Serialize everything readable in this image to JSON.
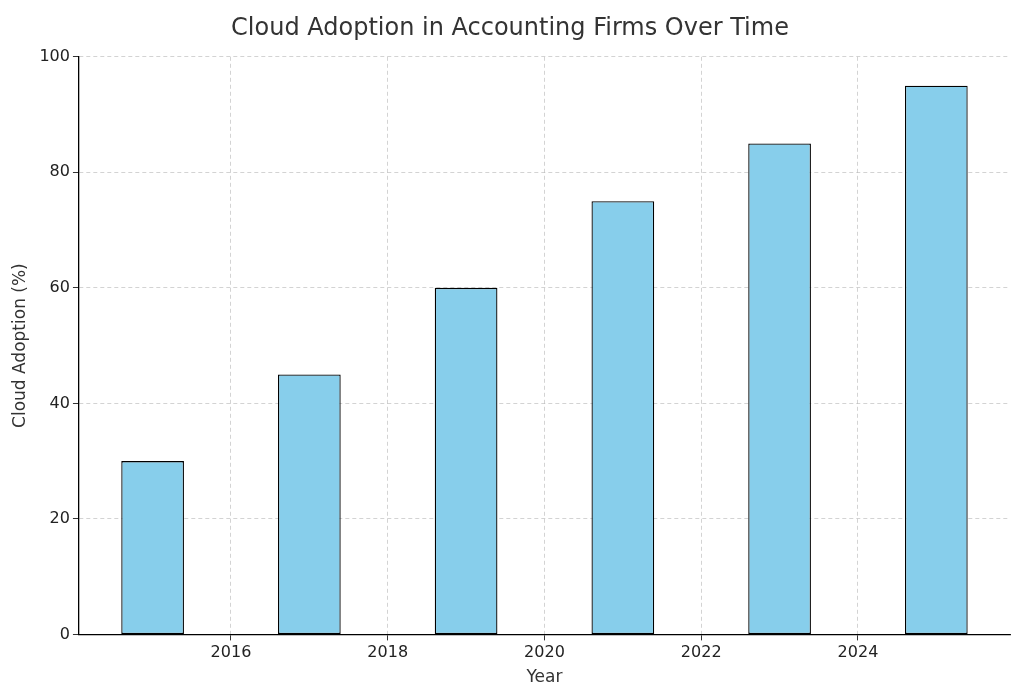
{
  "chart_data": {
    "type": "bar",
    "title": "Cloud Adoption in Accounting Firms Over Time",
    "x_label": "Year",
    "y_label": "Cloud Adoption (%)",
    "x": [
      2015,
      2017,
      2019,
      2021,
      2023,
      2025
    ],
    "values": [
      30,
      45,
      60,
      75,
      85,
      95
    ],
    "color": "#87ceeb",
    "xlim": [
      2014.06,
      2025.94
    ],
    "xticks": [
      2016,
      2018,
      2020,
      2022,
      2024
    ],
    "ylim": [
      0,
      100
    ],
    "yticks": [
      0,
      20,
      40,
      60,
      80,
      100
    ],
    "grid": true
  }
}
